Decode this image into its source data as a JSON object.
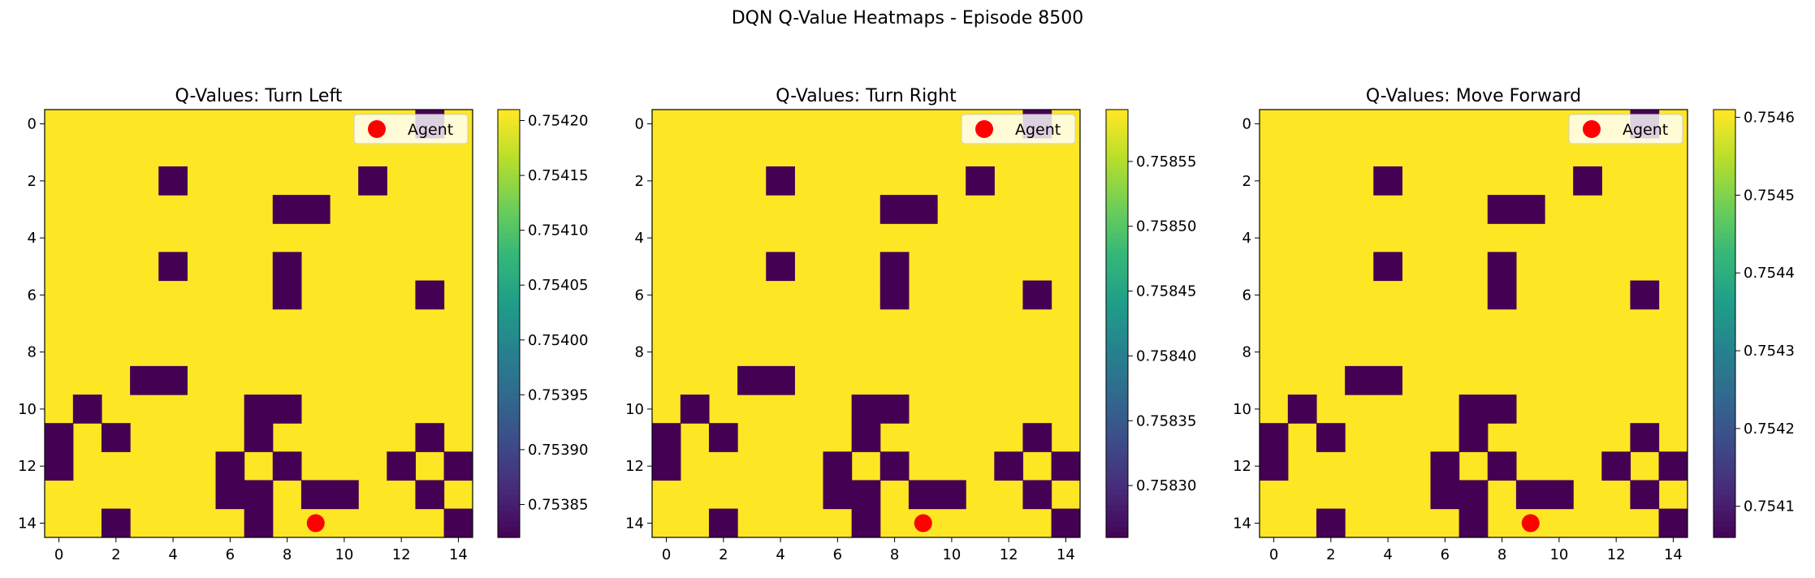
{
  "figure": {
    "suptitle": "DQN Q-Value Heatmaps - Episode 8500"
  },
  "colors": {
    "low": "#440154",
    "high": "#fde725",
    "agent": "#ff0000"
  },
  "colormap": "viridis",
  "chart_data": [
    {
      "type": "heatmap",
      "title": "Q-Values: Turn Left",
      "xlabel": "",
      "ylabel": "",
      "grid_size": 15,
      "x_ticks": [
        0,
        2,
        4,
        6,
        8,
        10,
        12,
        14
      ],
      "y_ticks": [
        0,
        2,
        4,
        6,
        8,
        10,
        12,
        14
      ],
      "low_cells": [
        [
          0,
          13
        ],
        [
          2,
          4
        ],
        [
          2,
          11
        ],
        [
          3,
          8
        ],
        [
          3,
          9
        ],
        [
          5,
          4
        ],
        [
          5,
          8
        ],
        [
          6,
          8
        ],
        [
          6,
          13
        ],
        [
          9,
          3
        ],
        [
          9,
          4
        ],
        [
          10,
          1
        ],
        [
          10,
          7
        ],
        [
          10,
          8
        ],
        [
          11,
          0
        ],
        [
          11,
          2
        ],
        [
          11,
          7
        ],
        [
          11,
          13
        ],
        [
          12,
          0
        ],
        [
          12,
          6
        ],
        [
          12,
          8
        ],
        [
          12,
          12
        ],
        [
          12,
          14
        ],
        [
          13,
          6
        ],
        [
          13,
          7
        ],
        [
          13,
          9
        ],
        [
          13,
          10
        ],
        [
          13,
          13
        ],
        [
          14,
          2
        ],
        [
          14,
          7
        ],
        [
          14,
          14
        ]
      ],
      "low_value": 0.75382,
      "high_value": 0.75421,
      "colorbar": {
        "min": 0.75382,
        "max": 0.75421,
        "ticks": [
          "0.75385",
          "0.75390",
          "0.75395",
          "0.75400",
          "0.75405",
          "0.75410",
          "0.75415",
          "0.75420"
        ]
      },
      "agent": {
        "x": 9,
        "y": 14,
        "label": "Agent"
      },
      "legend_placement": "upper right"
    },
    {
      "type": "heatmap",
      "title": "Q-Values: Turn Right",
      "xlabel": "",
      "ylabel": "",
      "grid_size": 15,
      "x_ticks": [
        0,
        2,
        4,
        6,
        8,
        10,
        12,
        14
      ],
      "y_ticks": [
        0,
        2,
        4,
        6,
        8,
        10,
        12,
        14
      ],
      "low_cells": [
        [
          0,
          13
        ],
        [
          2,
          4
        ],
        [
          2,
          11
        ],
        [
          3,
          8
        ],
        [
          3,
          9
        ],
        [
          5,
          4
        ],
        [
          5,
          8
        ],
        [
          6,
          8
        ],
        [
          6,
          13
        ],
        [
          9,
          3
        ],
        [
          9,
          4
        ],
        [
          10,
          1
        ],
        [
          10,
          7
        ],
        [
          10,
          8
        ],
        [
          11,
          0
        ],
        [
          11,
          2
        ],
        [
          11,
          7
        ],
        [
          11,
          13
        ],
        [
          12,
          0
        ],
        [
          12,
          6
        ],
        [
          12,
          8
        ],
        [
          12,
          12
        ],
        [
          12,
          14
        ],
        [
          13,
          6
        ],
        [
          13,
          7
        ],
        [
          13,
          9
        ],
        [
          13,
          10
        ],
        [
          13,
          13
        ],
        [
          14,
          2
        ],
        [
          14,
          7
        ],
        [
          14,
          14
        ]
      ],
      "low_value": 0.75826,
      "high_value": 0.75859,
      "colorbar": {
        "min": 0.75826,
        "max": 0.75859,
        "ticks": [
          "0.75830",
          "0.75835",
          "0.75840",
          "0.75845",
          "0.75850",
          "0.75855"
        ]
      },
      "agent": {
        "x": 9,
        "y": 14,
        "label": "Agent"
      },
      "legend_placement": "upper right"
    },
    {
      "type": "heatmap",
      "title": "Q-Values: Move Forward",
      "xlabel": "",
      "ylabel": "",
      "grid_size": 15,
      "x_ticks": [
        0,
        2,
        4,
        6,
        8,
        10,
        12,
        14
      ],
      "y_ticks": [
        0,
        2,
        4,
        6,
        8,
        10,
        12,
        14
      ],
      "low_cells": [
        [
          0,
          13
        ],
        [
          2,
          4
        ],
        [
          2,
          11
        ],
        [
          3,
          8
        ],
        [
          3,
          9
        ],
        [
          5,
          4
        ],
        [
          5,
          8
        ],
        [
          6,
          8
        ],
        [
          6,
          13
        ],
        [
          9,
          3
        ],
        [
          9,
          4
        ],
        [
          10,
          1
        ],
        [
          10,
          7
        ],
        [
          10,
          8
        ],
        [
          11,
          0
        ],
        [
          11,
          2
        ],
        [
          11,
          7
        ],
        [
          11,
          13
        ],
        [
          12,
          0
        ],
        [
          12,
          6
        ],
        [
          12,
          8
        ],
        [
          12,
          12
        ],
        [
          12,
          14
        ],
        [
          13,
          6
        ],
        [
          13,
          7
        ],
        [
          13,
          9
        ],
        [
          13,
          10
        ],
        [
          13,
          13
        ],
        [
          14,
          2
        ],
        [
          14,
          7
        ],
        [
          14,
          14
        ]
      ],
      "low_value": 0.75406,
      "high_value": 0.75461,
      "colorbar": {
        "min": 0.75406,
        "max": 0.75461,
        "ticks": [
          "0.7541",
          "0.7542",
          "0.7543",
          "0.7544",
          "0.7545",
          "0.7546"
        ]
      },
      "agent": {
        "x": 9,
        "y": 14,
        "label": "Agent"
      },
      "legend_placement": "upper right"
    }
  ]
}
